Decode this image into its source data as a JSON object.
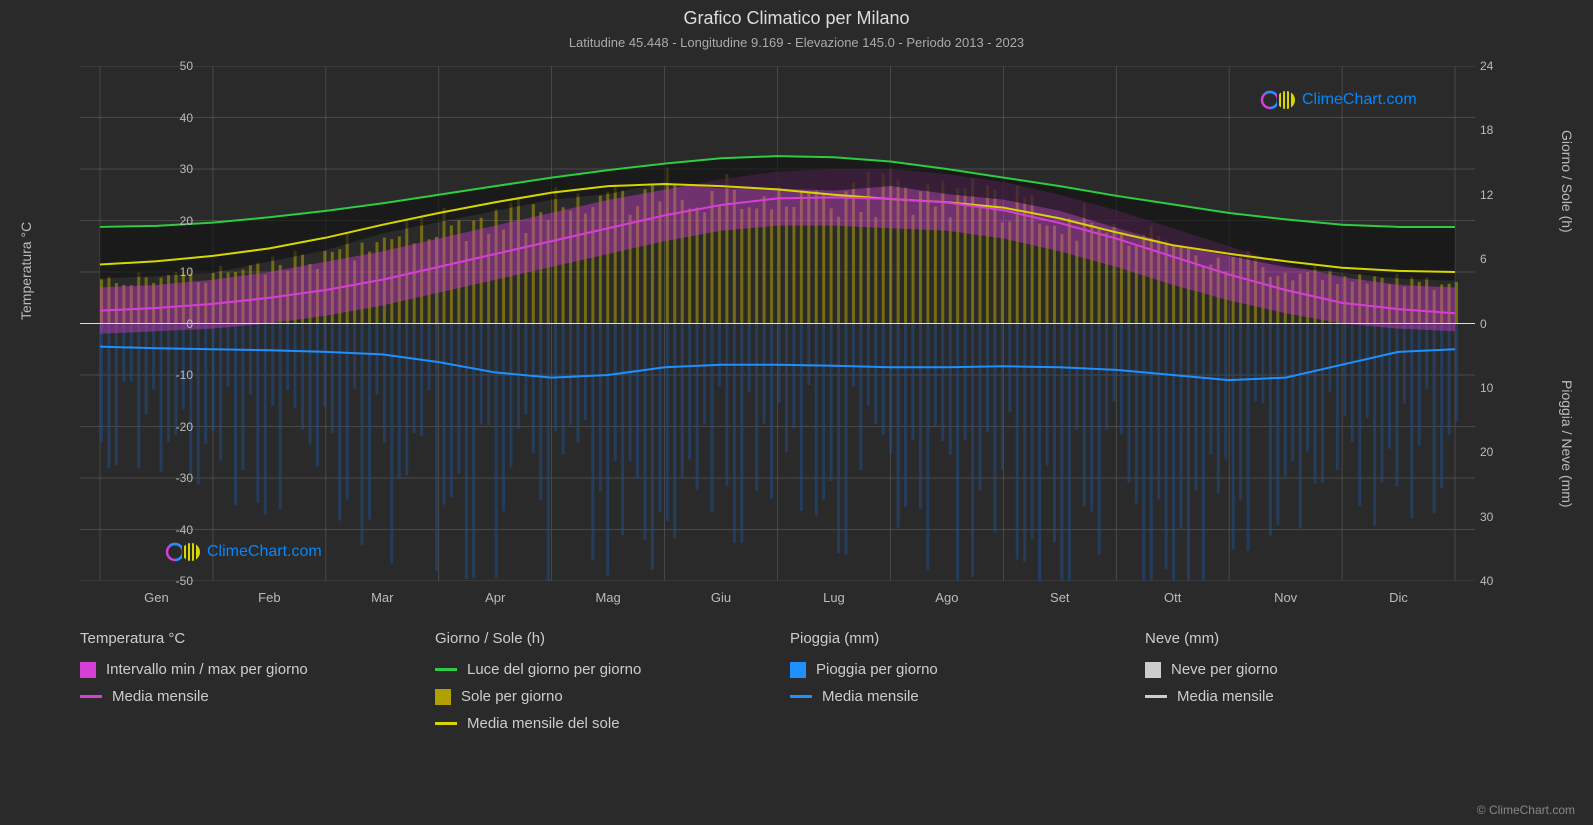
{
  "title": "Grafico Climatico per Milano",
  "subtitle": "Latitudine 45.448 - Longitudine 9.169 - Elevazione 145.0 - Periodo 2013 - 2023",
  "brand": "ClimeChart.com",
  "copyright": "© ClimeChart.com",
  "axes": {
    "left_label": "Temperatura °C",
    "right_top_label": "Giorno / Sole (h)",
    "right_bot_label": "Pioggia / Neve (mm)",
    "left_ticks": [
      50,
      40,
      30,
      20,
      10,
      0,
      -10,
      -20,
      -30,
      -40,
      -50
    ],
    "right_top_ticks": [
      24,
      18,
      12,
      6,
      0
    ],
    "right_bot_ticks": [
      10,
      20,
      30,
      40
    ],
    "x_labels": [
      "Gen",
      "Feb",
      "Mar",
      "Apr",
      "Mag",
      "Giu",
      "Lug",
      "Ago",
      "Set",
      "Ott",
      "Nov",
      "Dic"
    ]
  },
  "chart": {
    "background": "#2a2a2a",
    "grid_color": "#555555",
    "ylim": [
      -50,
      50
    ],
    "xlim": [
      0,
      365
    ],
    "series": {
      "daylight": {
        "color": "#2ecc40",
        "width": 2,
        "values": [
          9.0,
          9.1,
          9.4,
          9.9,
          10.5,
          11.2,
          12.0,
          12.8,
          13.6,
          14.3,
          14.9,
          15.4,
          15.6,
          15.5,
          15.1,
          14.4,
          13.6,
          12.8,
          11.9,
          11.1,
          10.3,
          9.7,
          9.2,
          9.0,
          9.0
        ]
      },
      "sun_avg": {
        "color": "#d6d600",
        "width": 2,
        "values": [
          5.5,
          5.8,
          6.3,
          7.0,
          8.0,
          9.2,
          10.3,
          11.3,
          12.2,
          12.8,
          13.0,
          12.8,
          12.5,
          12.0,
          11.6,
          11.3,
          10.8,
          9.8,
          8.5,
          7.3,
          6.5,
          5.8,
          5.2,
          4.9,
          4.8
        ]
      },
      "temp_avg": {
        "color": "#d63fd6",
        "width": 2,
        "values": [
          2.5,
          3.0,
          3.8,
          5.0,
          6.5,
          8.5,
          11.0,
          13.5,
          16.0,
          18.5,
          21.0,
          23.0,
          24.3,
          24.5,
          24.2,
          23.5,
          22.0,
          19.5,
          16.5,
          13.0,
          9.5,
          6.5,
          4.0,
          2.8,
          2.0
        ]
      },
      "temp_range": {
        "color": "#d63fd6",
        "opacity": 0.4,
        "low": [
          -2,
          -1.5,
          -1,
          0,
          1.5,
          3.5,
          6,
          8.5,
          11,
          13.5,
          16,
          18,
          19,
          19,
          18.5,
          18,
          16.5,
          14,
          11,
          7.5,
          4.5,
          2,
          0,
          -1,
          -1.5
        ],
        "high": [
          7,
          7.5,
          8.5,
          10,
          12,
          14,
          16.5,
          19,
          21.5,
          24,
          26,
          28,
          29.5,
          30,
          30,
          29,
          27.5,
          25,
          22,
          18.5,
          15,
          11.5,
          9,
          7.5,
          7
        ]
      },
      "sun_bars": {
        "color": "#b0a000",
        "opacity": 0.55,
        "values": [
          4,
          4.2,
          4.5,
          5.5,
          6.5,
          8,
          9,
          10,
          11,
          11.5,
          12.5,
          12,
          12,
          11.8,
          12.2,
          11.5,
          11,
          10,
          8.5,
          7,
          6,
          5,
          4.5,
          4,
          3.8
        ]
      },
      "rain_avg": {
        "color": "#1e90ff",
        "width": 2,
        "values": [
          -4.5,
          -4.8,
          -5.0,
          -5.2,
          -5.5,
          -6.0,
          -7.5,
          -9.5,
          -10.5,
          -10.0,
          -8.5,
          -8.0,
          -8.0,
          -8.2,
          -8.5,
          -8.5,
          -8.3,
          -8.5,
          -9.0,
          -10.0,
          -11.0,
          -10.5,
          -8.0,
          -5.5,
          -5.0
        ]
      },
      "rain_bars": {
        "color": "#1e4f8f",
        "opacity": 0.5,
        "values_low": [
          -30,
          -25,
          -28,
          -32,
          -36,
          -40,
          -44,
          -48,
          -50,
          -48,
          -44,
          -40,
          -38,
          -40,
          -42,
          -44,
          -42,
          -44,
          -48,
          -50,
          -50,
          -48,
          -40,
          -32,
          -30
        ]
      },
      "snow_bars": {
        "color": "#cccccc",
        "opacity": 0.3
      }
    }
  },
  "legend": {
    "cols": [
      {
        "header": "Temperatura °C",
        "items": [
          {
            "kind": "sq",
            "color": "#d63fd6",
            "label": "Intervallo min / max per giorno"
          },
          {
            "kind": "ln",
            "color": "#d63fd6",
            "label": "Media mensile"
          }
        ]
      },
      {
        "header": "Giorno / Sole (h)",
        "items": [
          {
            "kind": "ln",
            "color": "#2ecc40",
            "label": "Luce del giorno per giorno"
          },
          {
            "kind": "sq",
            "color": "#b0a000",
            "label": "Sole per giorno"
          },
          {
            "kind": "ln",
            "color": "#d6d600",
            "label": "Media mensile del sole"
          }
        ]
      },
      {
        "header": "Pioggia (mm)",
        "items": [
          {
            "kind": "sq",
            "color": "#1e90ff",
            "label": "Pioggia per giorno"
          },
          {
            "kind": "ln",
            "color": "#1e90ff",
            "label": "Media mensile"
          }
        ]
      },
      {
        "header": "Neve (mm)",
        "items": [
          {
            "kind": "sq",
            "color": "#cccccc",
            "label": "Neve per giorno"
          },
          {
            "kind": "ln",
            "color": "#cccccc",
            "label": "Media mensile"
          }
        ]
      }
    ]
  }
}
